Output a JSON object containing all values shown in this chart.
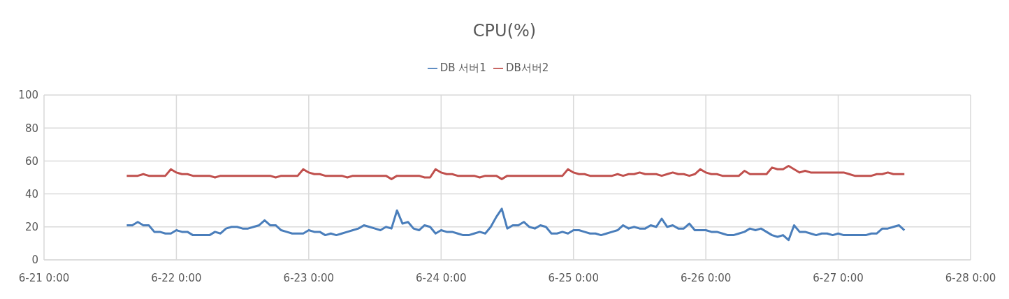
{
  "chart_data": {
    "type": "line",
    "title": "CPU(%)",
    "xlim": [
      "--06-21T00:00",
      "--06-28T00:00"
    ],
    "xticks": [
      {
        "value": "--06-21T00:00",
        "label": "6-21 0:00"
      },
      {
        "value": "--06-22T00:00",
        "label": "6-22 0:00"
      },
      {
        "value": "--06-23T00:00",
        "label": "6-23 0:00"
      },
      {
        "value": "--06-24T00:00",
        "label": "6-24 0:00"
      },
      {
        "value": "--06-25T00:00",
        "label": "6-25 0:00"
      },
      {
        "value": "--06-26T00:00",
        "label": "6-26 0:00"
      },
      {
        "value": "--06-27T00:00",
        "label": "6-27 0:00"
      },
      {
        "value": "--06-28T00:00",
        "label": "6-28 0:00"
      }
    ],
    "ylim": [
      0,
      100
    ],
    "yticks": [
      0,
      20,
      40,
      60,
      80,
      100
    ],
    "grid": true,
    "legend": "top",
    "marker": "none",
    "line_style": "solid",
    "x": [
      "--06-21T15:00",
      "--06-21T16:00",
      "--06-21T17:00",
      "--06-21T18:00",
      "--06-21T19:00",
      "--06-21T20:00",
      "--06-21T21:00",
      "--06-21T22:00",
      "--06-21T23:00",
      "--06-22T00:00",
      "--06-22T01:00",
      "--06-22T02:00",
      "--06-22T03:00",
      "--06-22T04:00",
      "--06-22T05:00",
      "--06-22T06:00",
      "--06-22T07:00",
      "--06-22T08:00",
      "--06-22T09:00",
      "--06-22T10:00",
      "--06-22T11:00",
      "--06-22T12:00",
      "--06-22T13:00",
      "--06-22T14:00",
      "--06-22T15:00",
      "--06-22T16:00",
      "--06-22T17:00",
      "--06-22T18:00",
      "--06-22T19:00",
      "--06-22T20:00",
      "--06-22T21:00",
      "--06-22T22:00",
      "--06-22T23:00",
      "--06-23T00:00",
      "--06-23T01:00",
      "--06-23T02:00",
      "--06-23T03:00",
      "--06-23T04:00",
      "--06-23T05:00",
      "--06-23T06:00",
      "--06-23T07:00",
      "--06-23T08:00",
      "--06-23T09:00",
      "--06-23T10:00",
      "--06-23T11:00",
      "--06-23T12:00",
      "--06-23T13:00",
      "--06-23T14:00",
      "--06-23T15:00",
      "--06-23T16:00",
      "--06-23T17:00",
      "--06-23T18:00",
      "--06-23T19:00",
      "--06-23T20:00",
      "--06-23T21:00",
      "--06-23T22:00",
      "--06-23T23:00",
      "--06-24T00:00",
      "--06-24T01:00",
      "--06-24T02:00",
      "--06-24T03:00",
      "--06-24T04:00",
      "--06-24T05:00",
      "--06-24T06:00",
      "--06-24T07:00",
      "--06-24T08:00",
      "--06-24T09:00",
      "--06-24T10:00",
      "--06-24T11:00",
      "--06-24T12:00",
      "--06-24T13:00",
      "--06-24T14:00",
      "--06-24T15:00",
      "--06-24T16:00",
      "--06-24T17:00",
      "--06-24T18:00",
      "--06-24T19:00",
      "--06-24T20:00",
      "--06-24T21:00",
      "--06-24T22:00",
      "--06-24T23:00",
      "--06-25T00:00",
      "--06-25T01:00",
      "--06-25T02:00",
      "--06-25T03:00",
      "--06-25T04:00",
      "--06-25T05:00",
      "--06-25T06:00",
      "--06-25T07:00",
      "--06-25T08:00",
      "--06-25T09:00",
      "--06-25T10:00",
      "--06-25T11:00",
      "--06-25T12:00",
      "--06-25T13:00",
      "--06-25T14:00",
      "--06-25T15:00",
      "--06-25T16:00",
      "--06-25T17:00",
      "--06-25T18:00",
      "--06-25T19:00",
      "--06-25T20:00",
      "--06-25T21:00",
      "--06-25T22:00",
      "--06-25T23:00",
      "--06-26T00:00",
      "--06-26T01:00",
      "--06-26T02:00",
      "--06-26T03:00",
      "--06-26T04:00",
      "--06-26T05:00",
      "--06-26T06:00",
      "--06-26T07:00",
      "--06-26T08:00",
      "--06-26T09:00",
      "--06-26T10:00",
      "--06-26T11:00",
      "--06-26T12:00",
      "--06-26T13:00",
      "--06-26T14:00",
      "--06-26T15:00",
      "--06-26T16:00",
      "--06-26T17:00",
      "--06-26T18:00",
      "--06-26T19:00",
      "--06-26T20:00",
      "--06-26T21:00",
      "--06-26T22:00",
      "--06-26T23:00",
      "--06-27T00:00",
      "--06-27T01:00",
      "--06-27T02:00",
      "--06-27T03:00",
      "--06-27T04:00",
      "--06-27T05:00",
      "--06-27T06:00",
      "--06-27T07:00",
      "--06-27T08:00",
      "--06-27T09:00",
      "--06-27T10:00",
      "--06-27T11:00",
      "--06-27T12:00"
    ],
    "series": [
      {
        "name": "DB 서버1",
        "color": "#4a7ebb",
        "values": [
          21,
          21,
          23,
          21,
          21,
          17,
          17,
          16,
          16,
          18,
          17,
          17,
          15,
          15,
          15,
          15,
          17,
          16,
          19,
          20,
          20,
          19,
          19,
          20,
          21,
          24,
          21,
          21,
          18,
          17,
          16,
          16,
          16,
          18,
          17,
          17,
          15,
          16,
          15,
          16,
          17,
          18,
          19,
          21,
          20,
          19,
          18,
          20,
          19,
          30,
          22,
          23,
          19,
          18,
          21,
          20,
          16,
          18,
          17,
          17,
          16,
          15,
          15,
          16,
          17,
          16,
          20,
          26,
          31,
          19,
          21,
          21,
          23,
          20,
          19,
          21,
          20,
          16,
          16,
          17,
          16,
          18,
          18,
          17,
          16,
          16,
          15,
          16,
          17,
          18,
          21,
          19,
          20,
          19,
          19,
          21,
          20,
          25,
          20,
          21,
          19,
          19,
          22,
          18,
          18,
          18,
          17,
          17,
          16,
          15,
          15,
          16,
          17,
          19,
          18,
          19,
          17,
          15,
          14,
          15,
          12,
          21,
          17,
          17,
          16,
          15,
          16,
          16,
          15,
          16,
          15,
          15,
          15,
          15,
          15,
          16,
          16,
          19,
          19,
          20,
          21,
          18
        ]
      },
      {
        "name": "DB서버2",
        "color": "#c0504d",
        "values": [
          51,
          51,
          51,
          52,
          51,
          51,
          51,
          51,
          55,
          53,
          52,
          52,
          51,
          51,
          51,
          51,
          50,
          51,
          51,
          51,
          51,
          51,
          51,
          51,
          51,
          51,
          51,
          50,
          51,
          51,
          51,
          51,
          55,
          53,
          52,
          52,
          51,
          51,
          51,
          51,
          50,
          51,
          51,
          51,
          51,
          51,
          51,
          51,
          49,
          51,
          51,
          51,
          51,
          51,
          50,
          50,
          55,
          53,
          52,
          52,
          51,
          51,
          51,
          51,
          50,
          51,
          51,
          51,
          49,
          51,
          51,
          51,
          51,
          51,
          51,
          51,
          51,
          51,
          51,
          51,
          55,
          53,
          52,
          52,
          51,
          51,
          51,
          51,
          51,
          52,
          51,
          52,
          52,
          53,
          52,
          52,
          52,
          51,
          52,
          53,
          52,
          52,
          51,
          52,
          55,
          53,
          52,
          52,
          51,
          51,
          51,
          51,
          54,
          52,
          52,
          52,
          52,
          56,
          55,
          55,
          57,
          55,
          53,
          54,
          53,
          53,
          53,
          53,
          53,
          53,
          53,
          52,
          51,
          51,
          51,
          51,
          52,
          52,
          53,
          52,
          52,
          52
        ]
      }
    ]
  }
}
